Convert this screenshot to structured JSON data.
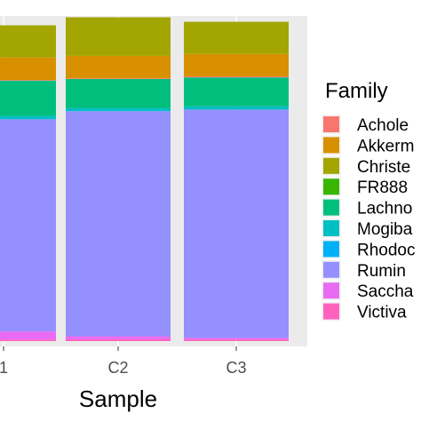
{
  "chart_data": {
    "type": "bar",
    "stacked": true,
    "orientation": "vertical",
    "xlabel": "Sample",
    "categories": [
      "1",
      "C2",
      "C3"
    ],
    "ylim": [
      0,
      1
    ],
    "grid": true,
    "legend": {
      "title": "Family",
      "position": "right"
    },
    "series": [
      {
        "name": "Achole",
        "color": "#F8766D",
        "values": [
          0.002,
          0.002,
          0.003
        ]
      },
      {
        "name": "Akkerm",
        "color": "#D89000",
        "values": [
          0.0,
          0.0,
          0.0
        ]
      },
      {
        "name": "Christe",
        "color": "#A3A500",
        "values": [
          0.0,
          0.0,
          0.0
        ]
      },
      {
        "name": "FR888",
        "color": "#39B600",
        "values": [
          0.0,
          0.0,
          0.0
        ]
      },
      {
        "name": "Lachno",
        "color": "#00BF7D",
        "values": [
          0.11,
          0.09,
          0.09
        ]
      },
      {
        "name": "Mogiba",
        "color": "#00BFC4",
        "values": [
          0.01,
          0.01,
          0.01
        ]
      },
      {
        "name": "Rhodoc",
        "color": "#00B0F6",
        "values": [
          0.0,
          0.0,
          0.0
        ]
      },
      {
        "name": "Rumin",
        "color": "#9590FF",
        "values": [
          0.66,
          0.7,
          0.71
        ]
      },
      {
        "name": "Saccha",
        "color": "#E76BF3",
        "values": [
          0.025,
          0.009,
          0.005
        ]
      },
      {
        "name": "Victiva",
        "color": "#FF62BC",
        "values": [
          0.005,
          0.006,
          0.005
        ]
      }
    ],
    "extra_segments_top": [
      {
        "color": "#D89000",
        "values": [
          0.07,
          0.07,
          0.07
        ]
      },
      {
        "color": "#A3A500",
        "values": [
          0.1,
          0.12,
          0.1
        ]
      }
    ],
    "extra_segments_note": ""
  }
}
